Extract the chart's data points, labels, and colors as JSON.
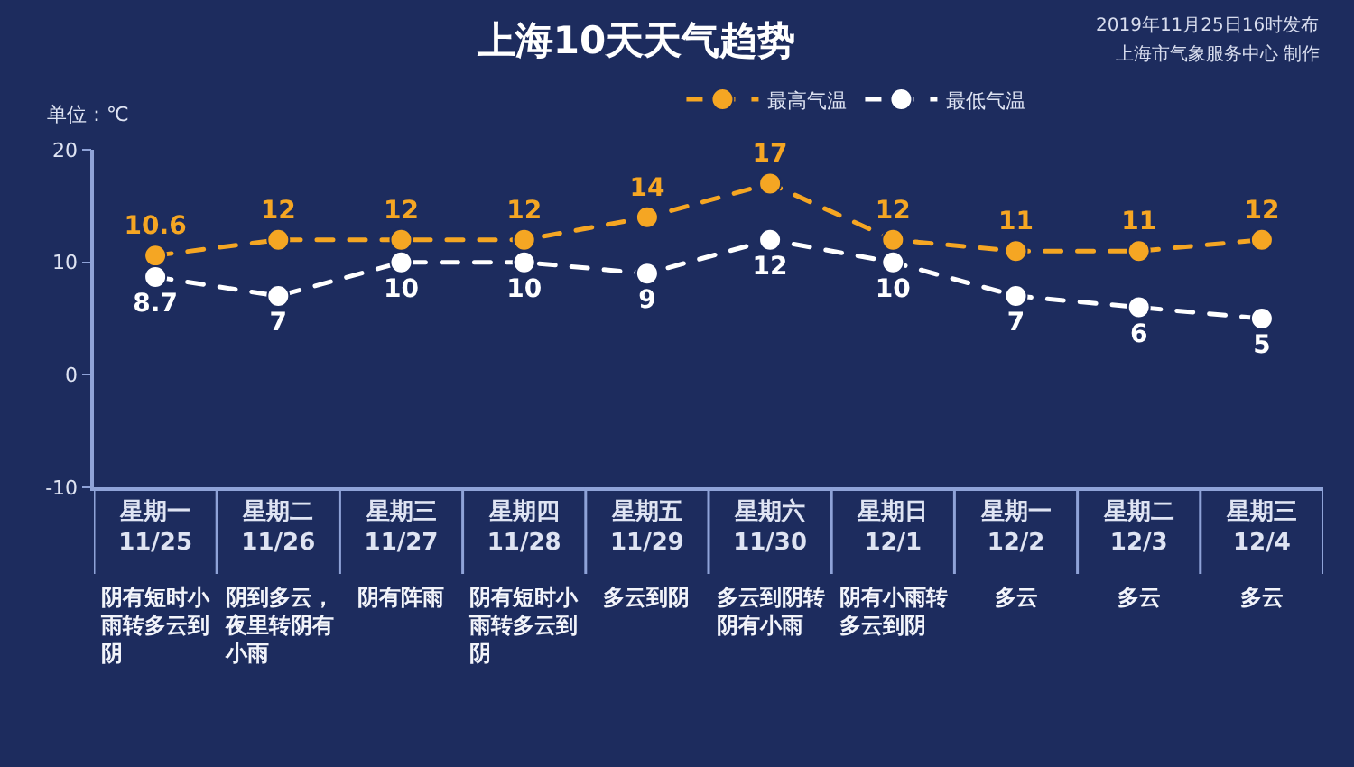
{
  "chart_data": {
    "type": "line",
    "title": "上海10天天气趋势",
    "ylabel": "单位：℃",
    "categories": [
      "星期一\n11/25",
      "星期二\n11/26",
      "星期三\n11/27",
      "星期四\n11/28",
      "星期五\n11/29",
      "星期六\n11/30",
      "星期日\n12/1",
      "星期一\n12/2",
      "星期二\n12/3",
      "星期三\n12/4"
    ],
    "series": [
      {
        "name": "最高气温",
        "color": "#f5a623",
        "values": [
          10.6,
          12,
          12,
          12,
          14,
          17,
          12,
          11,
          11,
          12
        ]
      },
      {
        "name": "最低气温",
        "color": "#ffffff",
        "values": [
          8.7,
          7,
          10,
          10,
          9,
          12,
          10,
          7,
          6,
          5
        ]
      }
    ],
    "ylim": [
      -10,
      20
    ],
    "yticks": [
      -10,
      0,
      10,
      20
    ],
    "grid": false,
    "legend": "top",
    "marker": "circle",
    "line_style": "dashed",
    "data_labels": true,
    "annotations": [
      "阴有短时小雨转多云到阴",
      "阴到多云，夜里转阴有小雨",
      "阴有阵雨",
      "阴有短时小雨转多云到阴",
      "多云到阴",
      "多云到阴转阴有小雨",
      "阴有小雨转多云到阴",
      "多云",
      "多云",
      "多云",
      "2019年11月25日16时发布",
      "上海市气象服务中心 制作"
    ]
  }
}
